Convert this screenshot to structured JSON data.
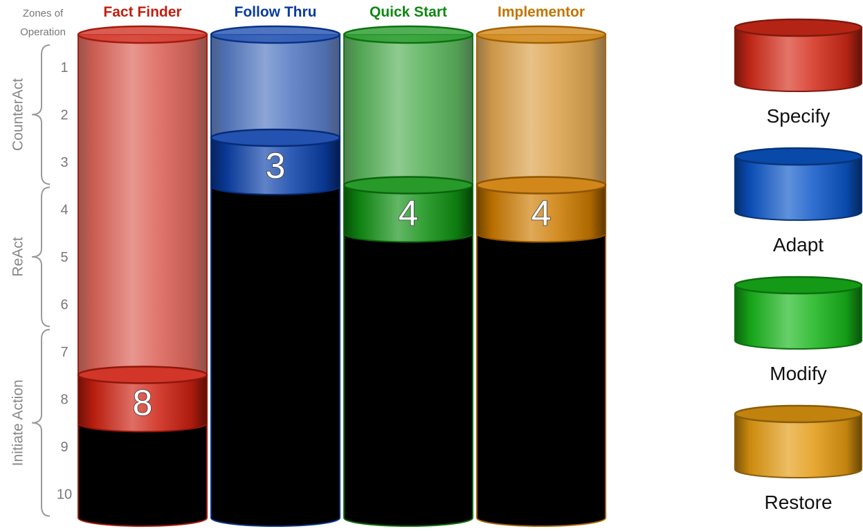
{
  "chart_data": {
    "type": "bar",
    "title": "",
    "axis": {
      "label_top": "Zones of",
      "label_bottom": "Operation",
      "ticks": [
        "1",
        "2",
        "3",
        "4",
        "5",
        "6",
        "7",
        "8",
        "9",
        "10"
      ],
      "ylim": [
        1,
        10
      ]
    },
    "zones": [
      {
        "name": "CounterAct",
        "from": 1,
        "to": 3
      },
      {
        "name": "ReAct",
        "from": 4,
        "to": 6
      },
      {
        "name": "Initiate Action",
        "from": 7,
        "to": 10
      }
    ],
    "categories": [
      "Fact Finder",
      "Follow Thru",
      "Quick Start",
      "Implementor"
    ],
    "values": [
      8,
      3,
      4,
      4
    ],
    "colors": {
      "Fact Finder": "#cc2010",
      "Follow Thru": "#0a3fa8",
      "Quick Start": "#0f8f12",
      "Implementor": "#cc7a00"
    },
    "legend": [
      {
        "label": "Specify",
        "color": "#d42a18"
      },
      {
        "label": "Adapt",
        "color": "#0b56c8"
      },
      {
        "label": "Modify",
        "color": "#17b51a"
      },
      {
        "label": "Restore",
        "color": "#e39a10"
      }
    ]
  }
}
